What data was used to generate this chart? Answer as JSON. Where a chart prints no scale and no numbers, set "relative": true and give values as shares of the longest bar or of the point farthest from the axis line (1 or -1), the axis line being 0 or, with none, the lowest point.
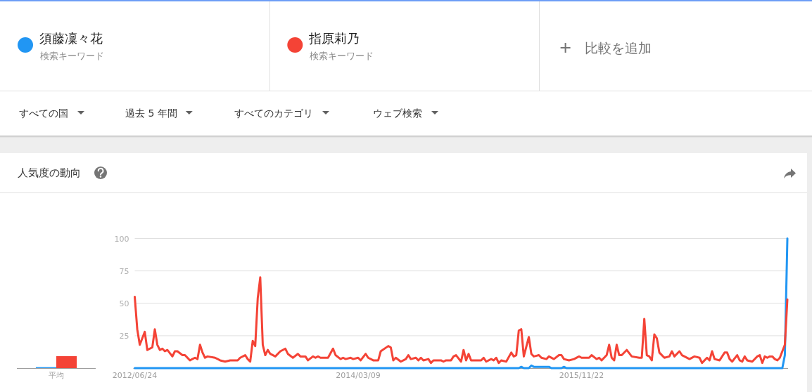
{
  "chart_data": [
    {
      "type": "bar",
      "categories": [
        "平均"
      ],
      "relative": true,
      "series": [
        {
          "color": "#2196f3",
          "values": [
            0.08
          ]
        },
        {
          "color": "#f44336",
          "values": [
            1
          ]
        }
      ]
    },
    {
      "type": "line",
      "title": "人気度の動向",
      "annotations": [
        "検索キーワード",
        "検索キーワード",
        "比較を追加",
        "すべての国",
        "過去 5 年間",
        "すべてのカテゴリ",
        "ウェブ検索"
      ],
      "legend": "top",
      "grid": "y",
      "xlim": [
        "2012-06-24",
        "2017-06-18"
      ],
      "xticks": [
        {
          "value": "2012-06-24",
          "label": "2012/06/24"
        },
        {
          "value": "2014-03-09",
          "label": "2014/03/09"
        },
        {
          "value": "2015-11-22",
          "label": "2015/11/22"
        }
      ],
      "ylim": [
        0,
        100
      ],
      "yticks": [
        {
          "value": 0,
          "label": null
        },
        25,
        50,
        75,
        100
      ],
      "series": [
        {
          "name": "須藤凜々花",
          "color": "#2196f3",
          "x": [
            "2012-06-24",
            "2015-05-31",
            "2015-06-07",
            "2015-06-14",
            "2015-06-28",
            "2015-07-05",
            "2015-07-12",
            "2015-08-23",
            "2015-08-30",
            "2015-09-27",
            "2015-10-04",
            "2015-10-11",
            "2017-06-04",
            "2017-06-11",
            "2017-06-18"
          ],
          "values": [
            0,
            0,
            1,
            0,
            0,
            2,
            1,
            1,
            0,
            0,
            1,
            0,
            0,
            10,
            100
          ]
        },
        {
          "name": "指原莉乃",
          "color": "#f44336",
          "x": [
            "2012-06-24",
            "2012-07-01",
            "2012-07-08",
            "2012-07-22",
            "2012-07-29",
            "2012-08-12",
            "2012-08-19",
            "2012-08-26",
            "2012-09-02",
            "2012-09-09",
            "2012-09-16",
            "2012-09-23",
            "2012-10-07",
            "2012-10-14",
            "2012-10-21",
            "2012-11-04",
            "2012-11-11",
            "2012-11-25",
            "2012-12-09",
            "2012-12-16",
            "2012-12-23",
            "2012-12-30",
            "2013-01-06",
            "2013-01-13",
            "2013-02-03",
            "2013-02-17",
            "2013-03-03",
            "2013-03-17",
            "2013-04-07",
            "2013-04-14",
            "2013-04-28",
            "2013-05-05",
            "2013-05-12",
            "2013-05-19",
            "2013-05-26",
            "2013-06-02",
            "2013-06-09",
            "2013-06-16",
            "2013-06-23",
            "2013-06-30",
            "2013-07-07",
            "2013-07-21",
            "2013-08-04",
            "2013-08-18",
            "2013-08-25",
            "2013-09-08",
            "2013-09-22",
            "2013-09-29",
            "2013-10-13",
            "2013-10-20",
            "2013-11-03",
            "2013-11-10",
            "2013-11-17",
            "2013-11-24",
            "2013-12-15",
            "2013-12-29",
            "2014-01-05",
            "2014-01-19",
            "2014-01-26",
            "2014-02-02",
            "2014-02-16",
            "2014-02-23",
            "2014-03-09",
            "2014-03-16",
            "2014-03-30",
            "2014-04-06",
            "2014-04-20",
            "2014-05-04",
            "2014-05-11",
            "2014-06-01",
            "2014-06-08",
            "2014-06-15",
            "2014-06-22",
            "2014-07-06",
            "2014-07-20",
            "2014-07-27",
            "2014-08-03",
            "2014-08-17",
            "2014-08-24",
            "2014-08-31",
            "2014-09-07",
            "2014-09-21",
            "2014-09-28",
            "2014-10-05",
            "2014-10-26",
            "2014-11-02",
            "2014-11-09",
            "2014-11-23",
            "2014-11-30",
            "2014-12-07",
            "2014-12-21",
            "2014-12-28",
            "2015-01-04",
            "2015-01-11",
            "2015-01-18",
            "2015-02-15",
            "2015-02-22",
            "2015-03-01",
            "2015-03-15",
            "2015-03-22",
            "2015-03-29",
            "2015-04-05",
            "2015-04-12",
            "2015-04-26",
            "2015-05-10",
            "2015-05-17",
            "2015-05-24",
            "2015-05-31",
            "2015-06-07",
            "2015-06-14",
            "2015-06-28",
            "2015-07-05",
            "2015-07-12",
            "2015-07-26",
            "2015-08-02",
            "2015-08-16",
            "2015-08-23",
            "2015-09-06",
            "2015-09-20",
            "2015-09-27",
            "2015-10-04",
            "2015-10-18",
            "2015-11-01",
            "2015-11-15",
            "2015-11-22",
            "2015-12-13",
            "2015-12-20",
            "2016-01-03",
            "2016-01-10",
            "2016-01-17",
            "2016-01-31",
            "2016-02-07",
            "2016-02-14",
            "2016-02-21",
            "2016-02-28",
            "2016-03-06",
            "2016-03-13",
            "2016-03-27",
            "2016-04-10",
            "2016-05-01",
            "2016-05-08",
            "2016-05-15",
            "2016-05-22",
            "2016-05-29",
            "2016-06-05",
            "2016-06-12",
            "2016-06-19",
            "2016-06-26",
            "2016-07-10",
            "2016-07-24",
            "2016-07-31",
            "2016-08-07",
            "2016-08-21",
            "2016-08-28",
            "2016-09-04",
            "2016-09-18",
            "2016-10-02",
            "2016-10-16",
            "2016-10-23",
            "2016-11-06",
            "2016-11-13",
            "2016-11-20",
            "2016-11-27",
            "2016-12-11",
            "2016-12-25",
            "2017-01-01",
            "2017-01-08",
            "2017-01-15",
            "2017-01-29",
            "2017-02-05",
            "2017-02-12",
            "2017-02-19",
            "2017-02-26",
            "2017-03-12",
            "2017-03-26",
            "2017-04-02",
            "2017-04-09",
            "2017-04-16",
            "2017-04-23",
            "2017-04-30",
            "2017-05-07",
            "2017-05-14",
            "2017-05-21",
            "2017-05-28",
            "2017-06-04",
            "2017-06-11",
            "2017-06-18"
          ],
          "values": [
            55,
            30,
            18,
            28,
            14,
            16,
            30,
            18,
            14,
            15,
            13,
            14,
            9,
            13,
            13,
            10,
            10,
            6,
            8,
            7,
            18,
            12,
            8,
            9,
            8,
            6,
            5,
            6,
            6,
            8,
            10,
            7,
            5,
            21,
            17,
            54,
            70,
            18,
            10,
            14,
            11,
            9,
            13,
            15,
            11,
            8,
            11,
            9,
            9,
            6,
            9,
            8,
            9,
            8,
            8,
            15,
            10,
            7,
            8,
            7,
            8,
            7,
            8,
            6,
            11,
            8,
            6,
            6,
            13,
            17,
            16,
            6,
            8,
            5,
            7,
            10,
            7,
            8,
            6,
            8,
            6,
            7,
            4,
            6,
            6,
            5,
            6,
            6,
            9,
            10,
            5,
            14,
            6,
            11,
            6,
            6,
            8,
            5,
            7,
            6,
            8,
            4,
            6,
            5,
            12,
            9,
            10,
            29,
            30,
            9,
            24,
            11,
            9,
            10,
            8,
            7,
            9,
            7,
            10,
            10,
            7,
            6,
            7,
            9,
            8,
            8,
            10,
            7,
            8,
            6,
            10,
            18,
            8,
            6,
            18,
            10,
            10,
            14,
            9,
            8,
            8,
            38,
            10,
            9,
            6,
            26,
            23,
            12,
            8,
            9,
            13,
            9,
            13,
            10,
            9,
            7,
            9,
            8,
            4,
            8,
            6,
            13,
            7,
            6,
            12,
            12,
            7,
            5,
            10,
            6,
            5,
            9,
            6,
            5,
            9,
            10,
            4,
            9,
            8,
            9,
            9,
            7,
            6,
            8,
            13,
            18,
            53
          ]
        }
      ]
    }
  ]
}
